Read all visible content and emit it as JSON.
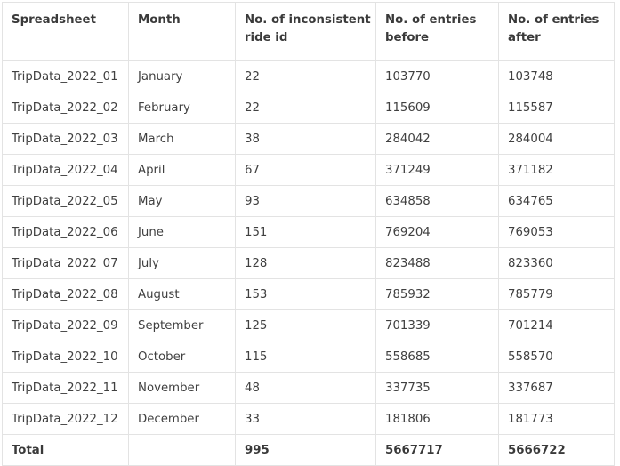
{
  "table": {
    "headers": [
      "Spreadsheet",
      "Month",
      "No. of inconsistent ride id",
      "No. of entries before",
      "No. of entries after"
    ],
    "rows": [
      [
        "TripData_2022_01",
        "January",
        "22",
        "103770",
        "103748"
      ],
      [
        "TripData_2022_02",
        "February",
        "22",
        "115609",
        "115587"
      ],
      [
        "TripData_2022_03",
        "March",
        "38",
        "284042",
        "284004"
      ],
      [
        "TripData_2022_04",
        "April",
        "67",
        "371249",
        "371182"
      ],
      [
        "TripData_2022_05",
        "May",
        "93",
        "634858",
        "634765"
      ],
      [
        "TripData_2022_06",
        "June",
        "151",
        "769204",
        "769053"
      ],
      [
        "TripData_2022_07",
        "July",
        "128",
        "823488",
        "823360"
      ],
      [
        "TripData_2022_08",
        "August",
        "153",
        "785932",
        "785779"
      ],
      [
        "TripData_2022_09",
        "September",
        "125",
        "701339",
        "701214"
      ],
      [
        "TripData_2022_10",
        "October",
        "115",
        "558685",
        "558570"
      ],
      [
        "TripData_2022_11",
        "November",
        "48",
        "337735",
        "337687"
      ],
      [
        "TripData_2022_12",
        "December",
        "33",
        "181806",
        "181773"
      ]
    ],
    "total": [
      "Total",
      "",
      "995",
      "5667717",
      "5666722"
    ]
  }
}
